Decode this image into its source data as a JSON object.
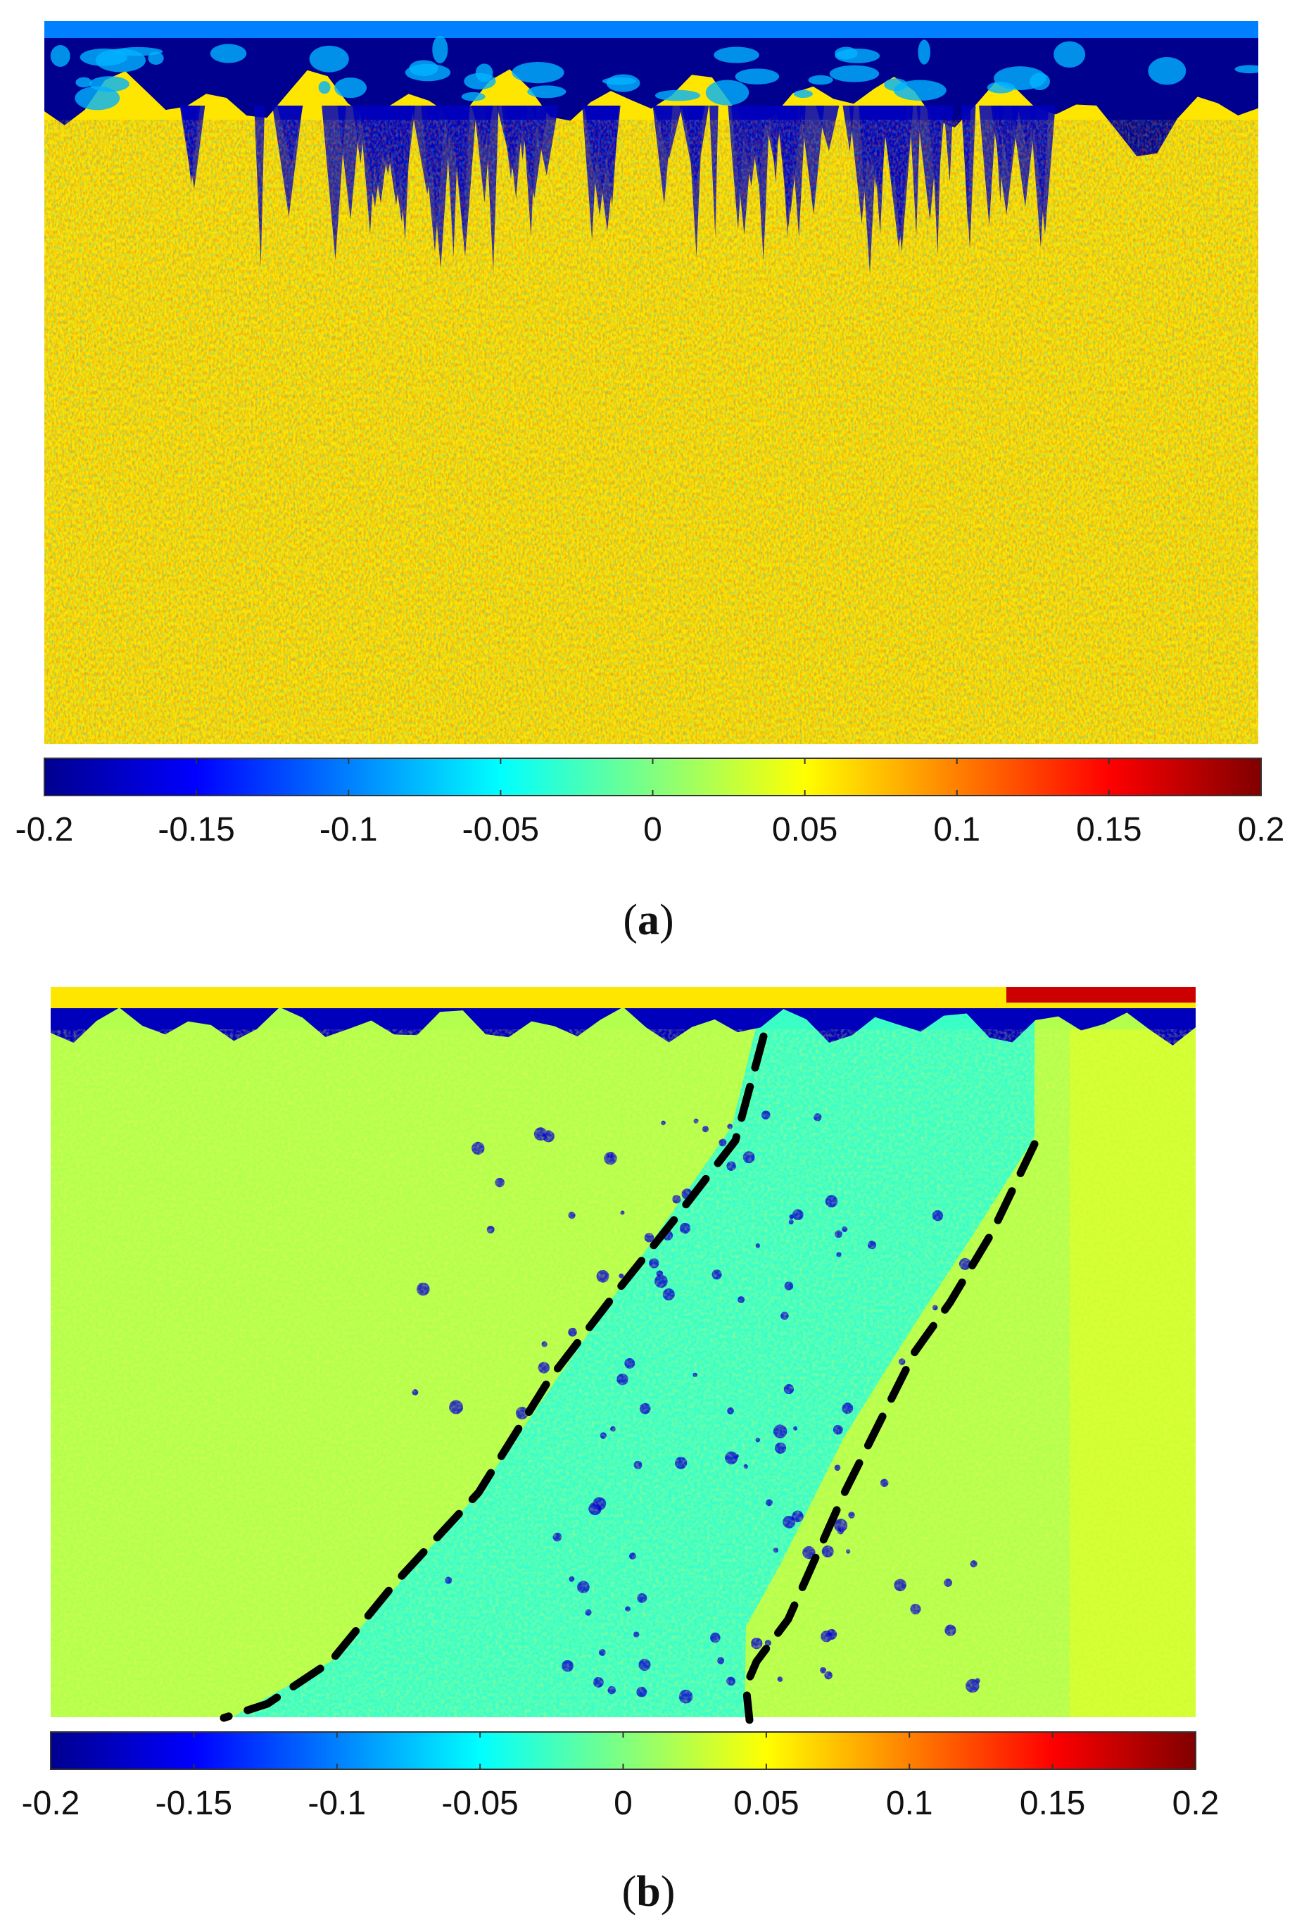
{
  "colormap_stops": [
    "#00008f",
    "#0000ff",
    "#0080ff",
    "#00ffff",
    "#80ff80",
    "#ffff00",
    "#ff8000",
    "#ff0000",
    "#800000"
  ],
  "chart_data": [
    {
      "type": "heatmap",
      "panel_label": "a",
      "colorbar": {
        "min": -0.2,
        "max": 0.2,
        "tick_values": [
          -0.2,
          -0.15,
          -0.1,
          -0.05,
          0,
          0.05,
          0.1,
          0.15,
          0.2
        ],
        "tick_labels": [
          "-0.2",
          "-0.15",
          "-0.1",
          "-0.05",
          "0",
          "0.05",
          "0.1",
          "0.15",
          "0.2"
        ]
      },
      "field": {
        "background_value": 0.06,
        "top_band_value": -0.2,
        "description_free": true
      }
    },
    {
      "type": "heatmap",
      "panel_label": "b",
      "colorbar": {
        "min": -0.2,
        "max": 0.2,
        "tick_values": [
          -0.2,
          -0.15,
          -0.1,
          -0.05,
          0,
          0.05,
          0.1,
          0.15,
          0.2
        ],
        "tick_labels": [
          "-0.2",
          "-0.15",
          "-0.1",
          "-0.05",
          "0",
          "0.05",
          "0.1",
          "0.15",
          "0.2"
        ]
      },
      "field": {
        "background_value": 0.02,
        "band_value": -0.04,
        "top_band_value": -0.18
      }
    }
  ]
}
